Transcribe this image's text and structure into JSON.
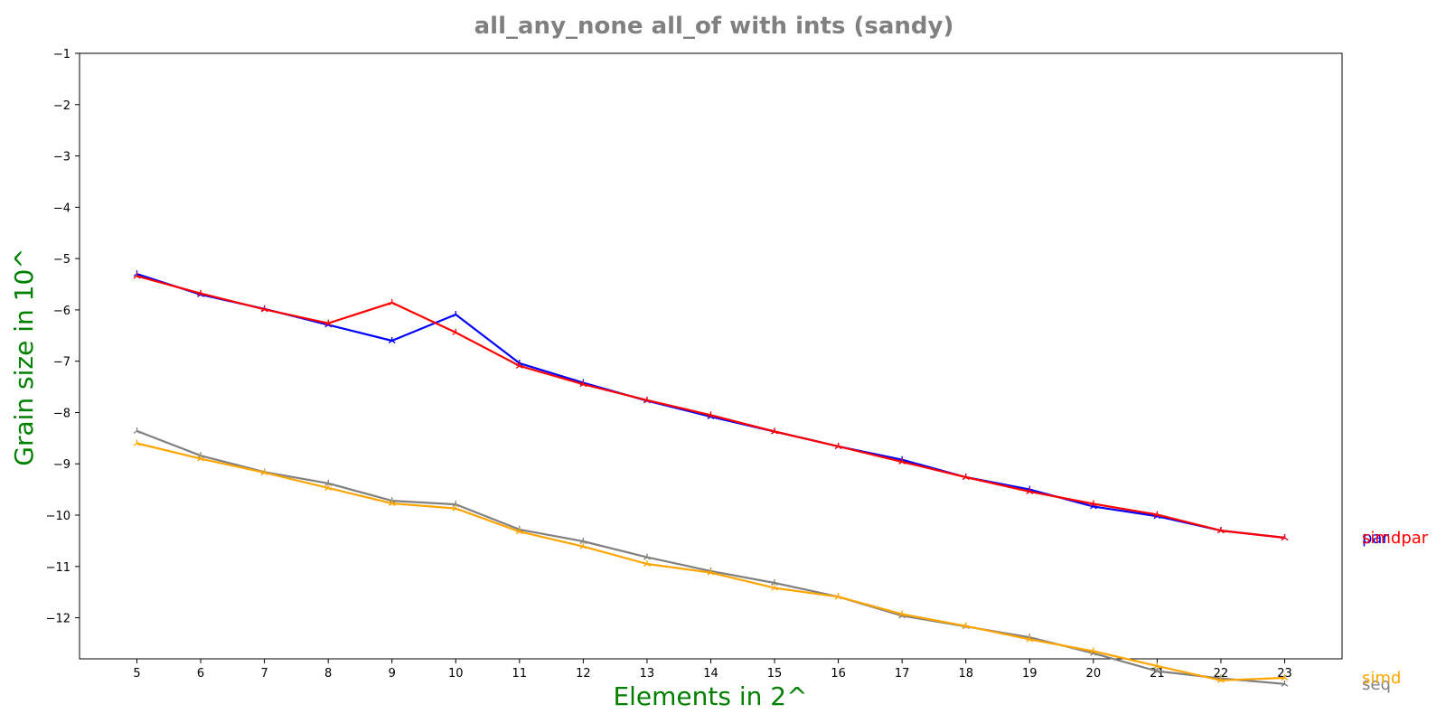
{
  "chart_data": {
    "type": "line",
    "title": "all_any_none all_of with ints  (sandy)",
    "xlabel": "Elements in 2^",
    "ylabel": "Grain size in 10^",
    "colors": {
      "title": "#808080",
      "axis_label": "#008000"
    },
    "xlim": [
      4.1,
      23.9
    ],
    "ylim": [
      -12.8,
      -1
    ],
    "x": [
      5,
      6,
      7,
      8,
      9,
      10,
      11,
      12,
      13,
      14,
      15,
      16,
      17,
      18,
      19,
      20,
      21,
      22,
      23
    ],
    "xticks": [
      5,
      6,
      7,
      8,
      9,
      10,
      11,
      12,
      13,
      14,
      15,
      16,
      17,
      18,
      19,
      20,
      21,
      22,
      23
    ],
    "yticks": [
      -1,
      -2,
      -3,
      -4,
      -5,
      -6,
      -7,
      -8,
      -9,
      -10,
      -11,
      -12
    ],
    "grid": false,
    "legend": "labels at right end of lines",
    "series": [
      {
        "name": "par",
        "color": "#0000ff",
        "values": [
          -5.3,
          -5.7,
          -5.98,
          -6.29,
          -6.6,
          -6.09,
          -7.04,
          -7.42,
          -7.77,
          -8.08,
          -8.37,
          -8.66,
          -8.92,
          -9.26,
          -9.5,
          -9.83,
          -10.02,
          -10.3,
          -10.44
        ]
      },
      {
        "name": "simdpar",
        "color": "#ff0000",
        "values": [
          -5.34,
          -5.68,
          -5.99,
          -6.26,
          -5.86,
          -6.44,
          -7.09,
          -7.45,
          -7.76,
          -8.05,
          -8.37,
          -8.66,
          -8.96,
          -9.26,
          -9.54,
          -9.78,
          -9.99,
          -10.3,
          -10.44
        ]
      },
      {
        "name": "seq",
        "color": "#808080",
        "values": [
          -8.36,
          -8.84,
          -9.16,
          -9.38,
          -9.72,
          -9.79,
          -10.28,
          -10.51,
          -10.82,
          -11.09,
          -11.32,
          -11.59,
          -11.96,
          -12.17,
          -12.38,
          -12.69,
          -13.04,
          -13.18,
          -13.29
        ]
      },
      {
        "name": "simd",
        "color": "#ffa500",
        "values": [
          -8.6,
          -8.9,
          -9.17,
          -9.47,
          -9.77,
          -9.87,
          -10.32,
          -10.61,
          -10.95,
          -11.12,
          -11.42,
          -11.59,
          -11.93,
          -12.16,
          -12.42,
          -12.65,
          -12.94,
          -13.22,
          -13.17
        ]
      }
    ]
  }
}
